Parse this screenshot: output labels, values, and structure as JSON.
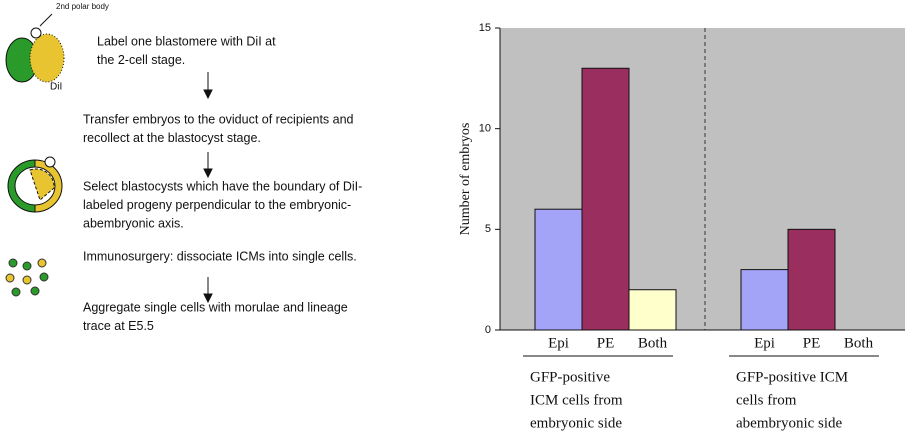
{
  "protocol": {
    "polar_body_label": "2nd polar body",
    "dye_label": "DiI",
    "steps": [
      [
        "Label one blastomere with DiI at",
        "the 2-cell stage."
      ],
      [
        "Transfer embryos to the oviduct of recipients and",
        "recollect at the blastocyst stage."
      ],
      [
        "Select blastocysts which have the boundary of DiI-",
        "labeled progeny perpendicular to the embryonic-",
        "abembryonic axis."
      ],
      [
        "Immunosurgery: dissociate ICMs into single cells."
      ],
      [
        "Aggregate single cells with morulae and lineage",
        "trace at E5.5"
      ]
    ]
  },
  "chart_data": {
    "type": "bar",
    "ylabel": "Number of embryos",
    "categories": [
      [
        "GFP-positive",
        "ICM cells  from",
        "embryonic side"
      ],
      [
        "GFP-positive ICM",
        "cells from",
        "abembryonic side"
      ]
    ],
    "series": [
      {
        "name": "Epi",
        "color": "#a3a3f7",
        "values": [
          6,
          3
        ]
      },
      {
        "name": "PE",
        "color": "#9a2f5f",
        "values": [
          13,
          5
        ]
      },
      {
        "name": "Both",
        "color": "#ffffcc",
        "values": [
          2,
          0
        ]
      }
    ],
    "ylim": [
      0,
      15
    ],
    "yticks": [
      0,
      5,
      10,
      15
    ],
    "background": "#c0c0c0"
  }
}
